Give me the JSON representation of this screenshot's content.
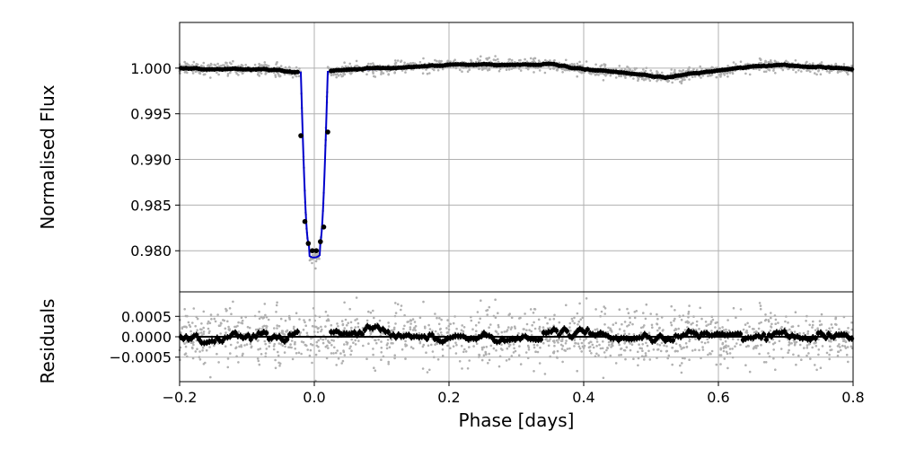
{
  "chart_data": [
    {
      "type": "scatter",
      "panel": "flux",
      "ylabel": "Normalised Flux",
      "xlim": [
        -0.2,
        0.8
      ],
      "ylim": [
        0.9755,
        1.005
      ],
      "grid": true,
      "yticks": [
        0.98,
        0.985,
        0.99,
        0.995,
        1.0
      ],
      "ytick_labels": [
        "0.980",
        "0.985",
        "0.990",
        "0.995",
        "1.000"
      ],
      "colors": {
        "raw": "#b0b0b0",
        "binned": "#000000",
        "model": "#0000cc"
      },
      "transit": {
        "center": 0.0,
        "depth": 0.0203,
        "duration": 0.04,
        "ingress": 0.012
      },
      "baseline": [
        [
          -0.2,
          1.0
        ],
        [
          -0.05,
          0.9998
        ],
        [
          -0.03,
          0.9995
        ],
        [
          0.02,
          0.9996
        ],
        [
          0.05,
          0.9998
        ],
        [
          0.1,
          0.9999
        ],
        [
          0.2,
          1.0004
        ],
        [
          0.3,
          1.0004
        ],
        [
          0.35,
          1.0004
        ],
        [
          0.4,
          0.9998
        ],
        [
          0.45,
          0.9996
        ],
        [
          0.52,
          0.999
        ],
        [
          0.6,
          0.9997
        ],
        [
          0.65,
          1.0002
        ],
        [
          0.7,
          1.0003
        ],
        [
          0.8,
          0.9999
        ]
      ],
      "binned_in_transit": [
        {
          "x": -0.02,
          "y": 0.9926
        },
        {
          "x": -0.014,
          "y": 0.9832
        },
        {
          "x": -0.009,
          "y": 0.9808
        },
        {
          "x": -0.003,
          "y": 0.98
        },
        {
          "x": 0.003,
          "y": 0.98
        },
        {
          "x": 0.009,
          "y": 0.981
        },
        {
          "x": 0.014,
          "y": 0.9826
        },
        {
          "x": 0.02,
          "y": 0.993
        }
      ]
    },
    {
      "type": "scatter",
      "panel": "residuals",
      "xlabel": "Phase [days]",
      "ylabel": "Residuals",
      "xlim": [
        -0.2,
        0.8
      ],
      "ylim": [
        -0.0011,
        0.0011
      ],
      "grid": true,
      "xticks": [
        -0.2,
        0.0,
        0.2,
        0.4,
        0.6,
        0.8
      ],
      "xtick_labels": [
        "−0.2",
        "0.0",
        "0.2",
        "0.4",
        "0.6",
        "0.8"
      ],
      "yticks": [
        -0.0005,
        0.0,
        0.0005
      ],
      "ytick_labels": [
        "−0.0005",
        "0.0000",
        "0.0005"
      ],
      "zero_line": 0.0,
      "colors": {
        "raw": "#b0b0b0",
        "binned": "#000000",
        "zero_line": "#000000"
      }
    }
  ]
}
